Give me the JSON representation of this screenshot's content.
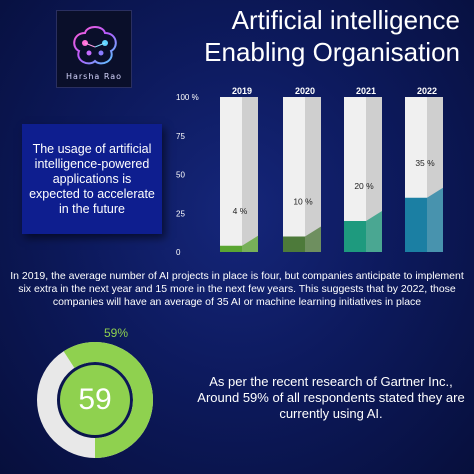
{
  "logo": {
    "text": "Harsha Rao"
  },
  "title": {
    "line1": "Artificial intelligence",
    "line2": "Enabling Organisation"
  },
  "callout": "The usage of artificial intelligence-powered applications is expected to accelerate in the future",
  "paragraph": "In 2019, the average number of AI projects in place is four, but companies anticipate to implement six extra in the next year and 15 more in the next few years. This suggests that by 2022, those companies will have an average of 35 AI or machine learning initiatives in place",
  "donut": {
    "value": 59,
    "center_label": "59",
    "pct_label": "59%",
    "color": "#8fd14f",
    "track_color": "#e8e8e8"
  },
  "stat_text": {
    "line1": "As per the recent research of Gartner Inc.,",
    "line2": "Around 59% of all respondents stated they are",
    "line3": "currently using AI."
  },
  "chart_data": {
    "type": "bar",
    "categories": [
      "2019",
      "2020",
      "2021",
      "2022"
    ],
    "values": [
      4,
      10,
      20,
      35
    ],
    "value_labels": [
      "4 %",
      "10 %",
      "20 %",
      "35 %"
    ],
    "y_ticks": [
      "0",
      "25",
      "50",
      "75",
      "100 %"
    ],
    "ylim": [
      0,
      100
    ],
    "colors": [
      "#5aa632",
      "#4d7a3a",
      "#1e9a7e",
      "#1b7fa3"
    ],
    "track_color": "#e6e6e6"
  }
}
